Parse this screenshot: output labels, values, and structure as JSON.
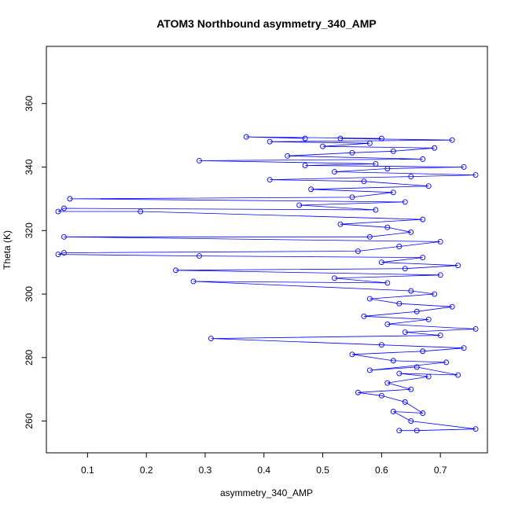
{
  "chart_data": {
    "type": "scatter",
    "title": "ATOM3 Northbound asymmetry_340_AMP",
    "xlabel": "asymmetry_340_AMP",
    "ylabel": "Theta (K)",
    "xlim": [
      0.03,
      0.78
    ],
    "ylim": [
      250,
      378
    ],
    "xticks": [
      "0.1",
      "0.2",
      "0.3",
      "0.4",
      "0.5",
      "0.6",
      "0.7"
    ],
    "yticks": [
      "260",
      "280",
      "300",
      "320",
      "340",
      "360"
    ],
    "grid": false,
    "legend": "none",
    "series": [
      {
        "color": "#0000ff",
        "marker": "open-circle",
        "connected": true,
        "points": [
          [
            0.63,
            257
          ],
          [
            0.66,
            257
          ],
          [
            0.76,
            257.5
          ],
          [
            0.65,
            260
          ],
          [
            0.62,
            263
          ],
          [
            0.67,
            262.5
          ],
          [
            0.64,
            266
          ],
          [
            0.6,
            268
          ],
          [
            0.56,
            269
          ],
          [
            0.65,
            270
          ],
          [
            0.61,
            272
          ],
          [
            0.68,
            274
          ],
          [
            0.63,
            275
          ],
          [
            0.73,
            274.5
          ],
          [
            0.66,
            277
          ],
          [
            0.58,
            276
          ],
          [
            0.71,
            278.5
          ],
          [
            0.62,
            279
          ],
          [
            0.55,
            281
          ],
          [
            0.67,
            282
          ],
          [
            0.74,
            283
          ],
          [
            0.6,
            284
          ],
          [
            0.31,
            286
          ],
          [
            0.7,
            287
          ],
          [
            0.64,
            288
          ],
          [
            0.76,
            289
          ],
          [
            0.61,
            290.5
          ],
          [
            0.68,
            292
          ],
          [
            0.57,
            293
          ],
          [
            0.66,
            294.5
          ],
          [
            0.72,
            296
          ],
          [
            0.63,
            297
          ],
          [
            0.58,
            298.5
          ],
          [
            0.69,
            300
          ],
          [
            0.65,
            301
          ],
          [
            0.28,
            304
          ],
          [
            0.61,
            303.5
          ],
          [
            0.52,
            305
          ],
          [
            0.7,
            306
          ],
          [
            0.25,
            307.5
          ],
          [
            0.64,
            308
          ],
          [
            0.73,
            309
          ],
          [
            0.6,
            310
          ],
          [
            0.67,
            311.5
          ],
          [
            0.29,
            312
          ],
          [
            0.05,
            312.5
          ],
          [
            0.06,
            313
          ],
          [
            0.56,
            313.5
          ],
          [
            0.63,
            315
          ],
          [
            0.7,
            316.5
          ],
          [
            0.06,
            318
          ],
          [
            0.58,
            318
          ],
          [
            0.65,
            319.5
          ],
          [
            0.61,
            321
          ],
          [
            0.53,
            322
          ],
          [
            0.67,
            323.5
          ],
          [
            0.19,
            326
          ],
          [
            0.05,
            326
          ],
          [
            0.06,
            327
          ],
          [
            0.59,
            326.5
          ],
          [
            0.46,
            328
          ],
          [
            0.64,
            329
          ],
          [
            0.07,
            330
          ],
          [
            0.55,
            330.5
          ],
          [
            0.62,
            332
          ],
          [
            0.48,
            333
          ],
          [
            0.68,
            334
          ],
          [
            0.57,
            335.5
          ],
          [
            0.41,
            336
          ],
          [
            0.65,
            337
          ],
          [
            0.76,
            337.5
          ],
          [
            0.52,
            338.5
          ],
          [
            0.61,
            339.5
          ],
          [
            0.74,
            340
          ],
          [
            0.47,
            340.5
          ],
          [
            0.59,
            341
          ],
          [
            0.29,
            342
          ],
          [
            0.67,
            342.5
          ],
          [
            0.44,
            343.5
          ],
          [
            0.55,
            344.5
          ],
          [
            0.62,
            345
          ],
          [
            0.69,
            346
          ],
          [
            0.5,
            346.5
          ],
          [
            0.58,
            347.5
          ],
          [
            0.41,
            348
          ],
          [
            0.72,
            348.5
          ],
          [
            0.53,
            349
          ],
          [
            0.6,
            349
          ],
          [
            0.37,
            349.5
          ],
          [
            0.47,
            349
          ]
        ]
      }
    ]
  }
}
